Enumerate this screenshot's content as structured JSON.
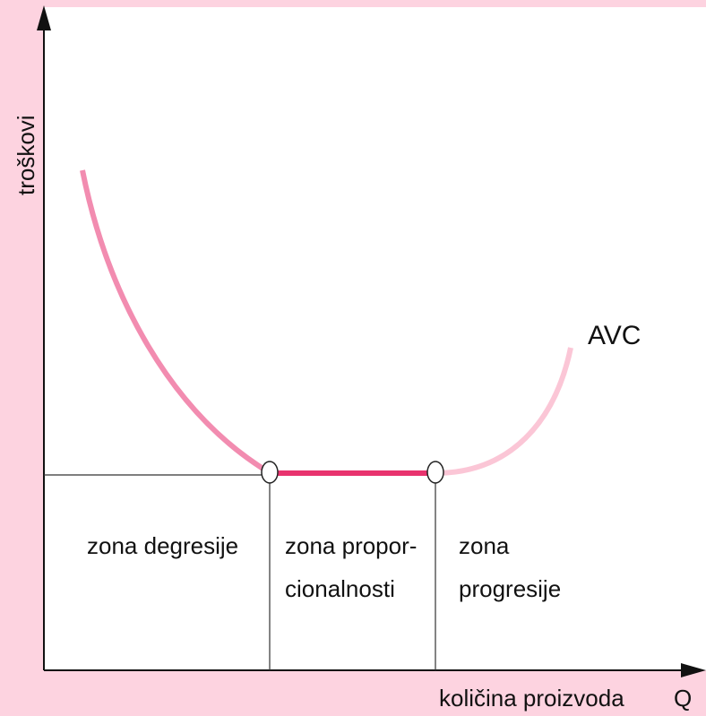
{
  "axes": {
    "y_label": "troškovi",
    "x_label": "količina proizvoda",
    "x_symbol": "Q"
  },
  "curve": {
    "label": "AVC"
  },
  "zones": [
    {
      "lines": [
        "zona degresije"
      ]
    },
    {
      "lines": [
        "zona propor-",
        "cionalnosti"
      ]
    },
    {
      "lines": [
        "zona",
        "progresije"
      ]
    }
  ]
}
